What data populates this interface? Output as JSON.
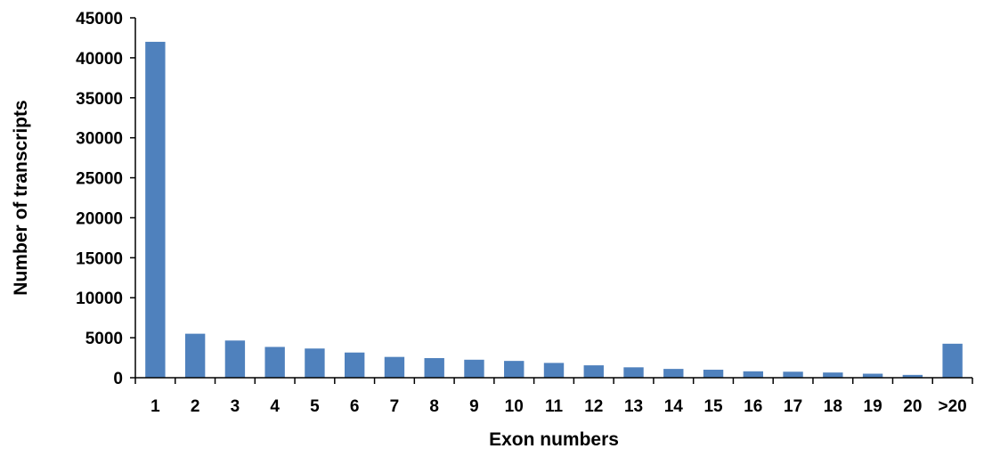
{
  "chart_data": {
    "type": "bar",
    "title": "",
    "xlabel": "Exon numbers",
    "ylabel": "Number of transcripts",
    "categories": [
      "1",
      "2",
      "3",
      "4",
      "5",
      "6",
      "7",
      "8",
      "9",
      "10",
      "11",
      "12",
      "13",
      "14",
      "15",
      "16",
      "17",
      "18",
      "19",
      "20",
      ">20"
    ],
    "values": [
      42000,
      5500,
      4650,
      3850,
      3650,
      3150,
      2600,
      2450,
      2250,
      2100,
      1850,
      1550,
      1300,
      1100,
      1000,
      800,
      750,
      650,
      500,
      350,
      4250
    ],
    "ylim": [
      0,
      45000
    ],
    "yticks": [
      "0",
      "5000",
      "10000",
      "15000",
      "20000",
      "25000",
      "30000",
      "35000",
      "40000",
      "45000"
    ],
    "grid": false,
    "legend": "none",
    "bar_color": "#4f81bd"
  }
}
